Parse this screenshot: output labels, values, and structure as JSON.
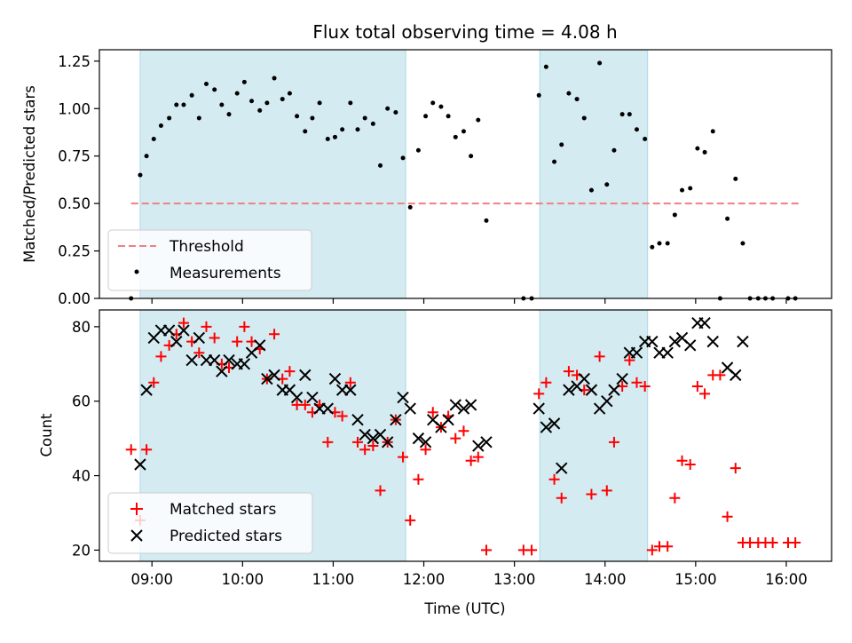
{
  "title": "Flux total observing time = 4.08 h",
  "x_axis": {
    "label": "Time (UTC)",
    "unit": "hours UTC",
    "range": [
      8.42,
      16.5
    ],
    "ticks": [
      {
        "v": 9,
        "label": "09:00"
      },
      {
        "v": 10,
        "label": "10:00"
      },
      {
        "v": 11,
        "label": "11:00"
      },
      {
        "v": 12,
        "label": "12:00"
      },
      {
        "v": 13,
        "label": "13:00"
      },
      {
        "v": 14,
        "label": "14:00"
      },
      {
        "v": 15,
        "label": "15:00"
      },
      {
        "v": 16,
        "label": "16:00"
      }
    ]
  },
  "colors": {
    "span": "#add8e6",
    "threshold": "#f08080",
    "measurements": "#000000",
    "matched": "#ff0000",
    "predicted": "#000000"
  },
  "chart_data": [
    {
      "type": "scatter",
      "ylabel": "Matched/Predicted stars",
      "ylim": [
        0,
        1.31
      ],
      "yticks": [
        {
          "v": 0,
          "label": "0.00"
        },
        {
          "v": 0.25,
          "label": "0.25"
        },
        {
          "v": 0.5,
          "label": "0.50"
        },
        {
          "v": 0.75,
          "label": "0.75"
        },
        {
          "v": 1.0,
          "label": "1.00"
        },
        {
          "v": 1.25,
          "label": "1.25"
        }
      ],
      "shaded_spans": [
        [
          8.87,
          11.8
        ],
        [
          13.28,
          14.47
        ]
      ],
      "threshold": {
        "name": "Threshold",
        "value": 0.5,
        "x_range": [
          8.77,
          16.17
        ]
      },
      "legend": {
        "placement": "lower-left",
        "entries": [
          "Threshold",
          "Measurements"
        ]
      },
      "series": [
        {
          "name": "Measurements",
          "marker": "dot",
          "points": [
            [
              8.77,
              0.0
            ],
            [
              8.87,
              0.65
            ],
            [
              8.94,
              0.75
            ],
            [
              9.02,
              0.84
            ],
            [
              9.1,
              0.91
            ],
            [
              9.19,
              0.95
            ],
            [
              9.27,
              1.02
            ],
            [
              9.35,
              1.02
            ],
            [
              9.44,
              1.07
            ],
            [
              9.52,
              0.95
            ],
            [
              9.6,
              1.13
            ],
            [
              9.69,
              1.1
            ],
            [
              9.77,
              1.02
            ],
            [
              9.85,
              0.97
            ],
            [
              9.94,
              1.08
            ],
            [
              10.02,
              1.14
            ],
            [
              10.1,
              1.04
            ],
            [
              10.19,
              0.99
            ],
            [
              10.27,
              1.03
            ],
            [
              10.35,
              1.16
            ],
            [
              10.44,
              1.05
            ],
            [
              10.52,
              1.08
            ],
            [
              10.6,
              0.96
            ],
            [
              10.69,
              0.88
            ],
            [
              10.77,
              0.95
            ],
            [
              10.85,
              1.03
            ],
            [
              10.94,
              0.84
            ],
            [
              11.02,
              0.85
            ],
            [
              11.1,
              0.89
            ],
            [
              11.19,
              1.03
            ],
            [
              11.27,
              0.89
            ],
            [
              11.35,
              0.95
            ],
            [
              11.44,
              0.92
            ],
            [
              11.52,
              0.7
            ],
            [
              11.6,
              1.0
            ],
            [
              11.69,
              0.98
            ],
            [
              11.77,
              0.74
            ],
            [
              11.85,
              0.48
            ],
            [
              11.94,
              0.78
            ],
            [
              12.02,
              0.96
            ],
            [
              12.1,
              1.03
            ],
            [
              12.19,
              1.01
            ],
            [
              12.27,
              0.96
            ],
            [
              12.35,
              0.85
            ],
            [
              12.44,
              0.88
            ],
            [
              12.52,
              0.75
            ],
            [
              12.6,
              0.94
            ],
            [
              12.69,
              0.41
            ],
            [
              13.1,
              0.0
            ],
            [
              13.19,
              0.0
            ],
            [
              13.27,
              1.07
            ],
            [
              13.35,
              1.22
            ],
            [
              13.44,
              0.72
            ],
            [
              13.52,
              0.81
            ],
            [
              13.6,
              1.08
            ],
            [
              13.69,
              1.05
            ],
            [
              13.77,
              0.95
            ],
            [
              13.85,
              0.57
            ],
            [
              13.94,
              1.24
            ],
            [
              14.02,
              0.6
            ],
            [
              14.1,
              0.78
            ],
            [
              14.19,
              0.97
            ],
            [
              14.27,
              0.97
            ],
            [
              14.35,
              0.89
            ],
            [
              14.44,
              0.84
            ],
            [
              14.52,
              0.27
            ],
            [
              14.6,
              0.29
            ],
            [
              14.69,
              0.29
            ],
            [
              14.77,
              0.44
            ],
            [
              14.85,
              0.57
            ],
            [
              14.94,
              0.58
            ],
            [
              15.02,
              0.79
            ],
            [
              15.1,
              0.77
            ],
            [
              15.19,
              0.88
            ],
            [
              15.27,
              0.0
            ],
            [
              15.35,
              0.42
            ],
            [
              15.44,
              0.63
            ],
            [
              15.52,
              0.29
            ],
            [
              15.6,
              0.0
            ],
            [
              15.69,
              0.0
            ],
            [
              15.77,
              0.0
            ],
            [
              15.85,
              0.0
            ],
            [
              16.02,
              0.0
            ],
            [
              16.1,
              0.0
            ]
          ]
        }
      ]
    },
    {
      "type": "scatter",
      "ylabel": "Count",
      "xlabel": "Time (UTC)",
      "ylim": [
        17,
        84.5
      ],
      "yticks": [
        {
          "v": 20,
          "label": "20"
        },
        {
          "v": 40,
          "label": "40"
        },
        {
          "v": 60,
          "label": "60"
        },
        {
          "v": 80,
          "label": "80"
        }
      ],
      "shaded_spans": [
        [
          8.87,
          11.8
        ],
        [
          13.28,
          14.47
        ]
      ],
      "legend": {
        "placement": "lower-left",
        "entries": [
          "Matched stars",
          "Predicted stars"
        ]
      },
      "series": [
        {
          "name": "Matched stars",
          "marker": "plus",
          "points": [
            [
              8.77,
              47
            ],
            [
              8.87,
              28
            ],
            [
              8.94,
              47
            ],
            [
              9.02,
              65
            ],
            [
              9.1,
              72
            ],
            [
              9.19,
              75
            ],
            [
              9.27,
              78
            ],
            [
              9.35,
              81
            ],
            [
              9.44,
              76
            ],
            [
              9.52,
              73
            ],
            [
              9.6,
              80
            ],
            [
              9.69,
              77
            ],
            [
              9.77,
              70
            ],
            [
              9.85,
              69
            ],
            [
              9.94,
              76
            ],
            [
              10.02,
              80
            ],
            [
              10.1,
              76
            ],
            [
              10.19,
              74
            ],
            [
              10.27,
              66
            ],
            [
              10.35,
              78
            ],
            [
              10.44,
              66
            ],
            [
              10.52,
              68
            ],
            [
              10.6,
              59
            ],
            [
              10.69,
              59
            ],
            [
              10.77,
              57
            ],
            [
              10.85,
              59
            ],
            [
              10.94,
              49
            ],
            [
              11.02,
              57
            ],
            [
              11.1,
              56
            ],
            [
              11.19,
              65
            ],
            [
              11.27,
              49
            ],
            [
              11.35,
              47
            ],
            [
              11.44,
              48
            ],
            [
              11.52,
              36
            ],
            [
              11.6,
              49
            ],
            [
              11.69,
              55
            ],
            [
              11.77,
              45
            ],
            [
              11.85,
              28
            ],
            [
              11.94,
              39
            ],
            [
              12.02,
              47
            ],
            [
              12.1,
              57
            ],
            [
              12.19,
              53
            ],
            [
              12.27,
              56
            ],
            [
              12.35,
              50
            ],
            [
              12.44,
              52
            ],
            [
              12.52,
              44
            ],
            [
              12.6,
              45
            ],
            [
              12.69,
              20
            ],
            [
              13.1,
              20
            ],
            [
              13.19,
              20
            ],
            [
              13.27,
              62
            ],
            [
              13.35,
              65
            ],
            [
              13.44,
              39
            ],
            [
              13.52,
              34
            ],
            [
              13.6,
              68
            ],
            [
              13.69,
              67
            ],
            [
              13.77,
              63
            ],
            [
              13.85,
              35
            ],
            [
              13.94,
              72
            ],
            [
              14.02,
              36
            ],
            [
              14.1,
              49
            ],
            [
              14.19,
              64
            ],
            [
              14.27,
              71
            ],
            [
              14.35,
              65
            ],
            [
              14.44,
              64
            ],
            [
              14.52,
              20
            ],
            [
              14.6,
              21
            ],
            [
              14.69,
              21
            ],
            [
              14.77,
              34
            ],
            [
              14.85,
              44
            ],
            [
              14.94,
              43
            ],
            [
              15.02,
              64
            ],
            [
              15.1,
              62
            ],
            [
              15.19,
              67
            ],
            [
              15.27,
              67
            ],
            [
              15.35,
              29
            ],
            [
              15.44,
              42
            ],
            [
              15.52,
              22
            ],
            [
              15.6,
              22
            ],
            [
              15.69,
              22
            ],
            [
              15.77,
              22
            ],
            [
              15.85,
              22
            ],
            [
              16.02,
              22
            ],
            [
              16.1,
              22
            ]
          ]
        },
        {
          "name": "Predicted stars",
          "marker": "x",
          "points": [
            [
              8.87,
              43
            ],
            [
              8.94,
              63
            ],
            [
              9.02,
              77
            ],
            [
              9.1,
              79
            ],
            [
              9.19,
              79
            ],
            [
              9.27,
              76
            ],
            [
              9.35,
              79
            ],
            [
              9.44,
              71
            ],
            [
              9.52,
              77
            ],
            [
              9.6,
              71
            ],
            [
              9.69,
              71
            ],
            [
              9.77,
              68
            ],
            [
              9.85,
              71
            ],
            [
              9.94,
              70
            ],
            [
              10.02,
              70
            ],
            [
              10.1,
              73
            ],
            [
              10.19,
              75
            ],
            [
              10.27,
              66
            ],
            [
              10.35,
              67
            ],
            [
              10.44,
              63
            ],
            [
              10.52,
              63
            ],
            [
              10.6,
              61
            ],
            [
              10.69,
              67
            ],
            [
              10.77,
              61
            ],
            [
              10.85,
              58
            ],
            [
              10.94,
              58
            ],
            [
              11.02,
              66
            ],
            [
              11.1,
              63
            ],
            [
              11.19,
              63
            ],
            [
              11.27,
              55
            ],
            [
              11.35,
              51
            ],
            [
              11.44,
              50
            ],
            [
              11.52,
              51
            ],
            [
              11.6,
              49
            ],
            [
              11.69,
              55
            ],
            [
              11.77,
              61
            ],
            [
              11.85,
              58
            ],
            [
              11.94,
              50
            ],
            [
              12.02,
              49
            ],
            [
              12.1,
              55
            ],
            [
              12.19,
              53
            ],
            [
              12.27,
              55
            ],
            [
              12.35,
              59
            ],
            [
              12.44,
              58
            ],
            [
              12.52,
              59
            ],
            [
              12.6,
              48
            ],
            [
              12.69,
              49
            ],
            [
              13.27,
              58
            ],
            [
              13.35,
              53
            ],
            [
              13.44,
              54
            ],
            [
              13.52,
              42
            ],
            [
              13.6,
              63
            ],
            [
              13.69,
              64
            ],
            [
              13.77,
              66
            ],
            [
              13.85,
              63
            ],
            [
              13.94,
              58
            ],
            [
              14.02,
              60
            ],
            [
              14.1,
              63
            ],
            [
              14.19,
              66
            ],
            [
              14.27,
              73
            ],
            [
              14.35,
              73
            ],
            [
              14.44,
              76
            ],
            [
              14.52,
              76
            ],
            [
              14.6,
              73
            ],
            [
              14.69,
              73
            ],
            [
              14.77,
              76
            ],
            [
              14.85,
              77
            ],
            [
              14.94,
              75
            ],
            [
              15.02,
              81
            ],
            [
              15.1,
              81
            ],
            [
              15.19,
              76
            ],
            [
              15.35,
              69
            ],
            [
              15.44,
              67
            ],
            [
              15.52,
              76
            ]
          ]
        }
      ]
    }
  ]
}
